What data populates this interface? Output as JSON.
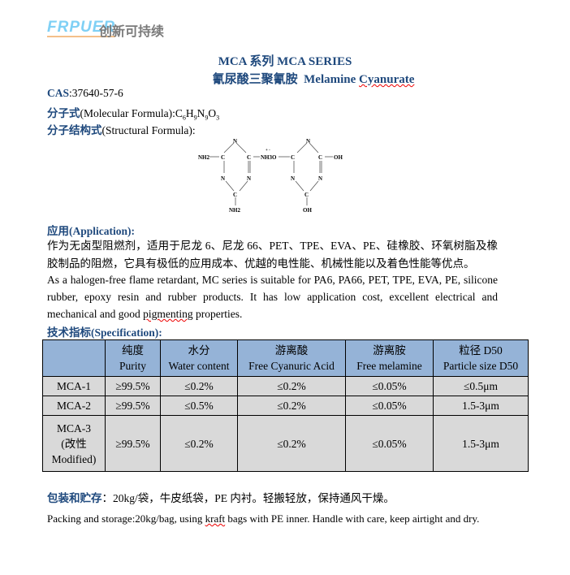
{
  "header": {
    "logo": "FRPUER",
    "slogan": "创新可持续"
  },
  "title": {
    "line1": "MCA 系列 MCA SERIES",
    "line2_cn": "氰尿酸三聚氰胺",
    "line2_en_a": "Melamine ",
    "line2_en_b": "Cyanurate"
  },
  "cas": {
    "label": "CAS",
    "value": ":37640-57-6"
  },
  "formula": {
    "label": "分子式",
    "text": "(Molecular Formula):C",
    "s1": "6",
    "h": "H",
    "s2": "9",
    "n": "N",
    "s3": "9",
    "o": "O",
    "s4": "3"
  },
  "structure": {
    "label": "分子结构式",
    "text": "(Structural Formula):",
    "atoms": {
      "n": "N",
      "c": "C",
      "nh2": "NH2",
      "link": "NH3O",
      "charge": "+ -",
      "oh": "OH"
    }
  },
  "application": {
    "heading": "应用(Application):",
    "cn": "作为无卤型阻燃剂，适用于尼龙 6、尼龙 66、PET、TPE、EVA、PE、硅橡胶、环氧树脂及橡胶制品的阻燃，它具有极低的应用成本、优越的电性能、机械性能以及着色性能等优点。",
    "en_a": "As a halogen-free flame retardant, MC series is suitable for PA6, PA66, PET, TPE, EVA, PE, silicone rubber, epoxy resin and rubber products. It has low application cost, excellent electrical and mechanical and good ",
    "en_b": "pigmenting",
    "en_c": " properties."
  },
  "spec": {
    "heading": "技术指标(Specification):",
    "headers": [
      [
        "",
        ""
      ],
      [
        "纯度",
        "Purity"
      ],
      [
        "水分",
        "Water content"
      ],
      [
        "游离酸",
        "Free Cyanuric Acid"
      ],
      [
        "游离胺",
        "Free melamine"
      ],
      [
        "粒径 D50",
        "Particle size D50"
      ]
    ],
    "rows": [
      [
        "MCA-1",
        "≥99.5%",
        "≤0.2%",
        "≤0.2%",
        "≤0.05%",
        "≤0.5μm"
      ],
      [
        "MCA-2",
        "≥99.5%",
        "≤0.5%",
        "≤0.2%",
        "≤0.05%",
        "1.5-3μm"
      ],
      [
        "MCA-3\n(改性\nModified)",
        "≥99.5%",
        "≤0.2%",
        "≤0.2%",
        "≤0.05%",
        "1.5-3μm"
      ]
    ]
  },
  "packing": {
    "label": "包装和贮存",
    "cn": "：20kg/袋，牛皮纸袋，PE 内衬。轻搬轻放，保持通风干燥。",
    "en_a": "Packing and storage:20kg/bag, using ",
    "en_b": "kraft",
    "en_c": " bags with PE inner. Handle with care, keep airtight and dry."
  }
}
